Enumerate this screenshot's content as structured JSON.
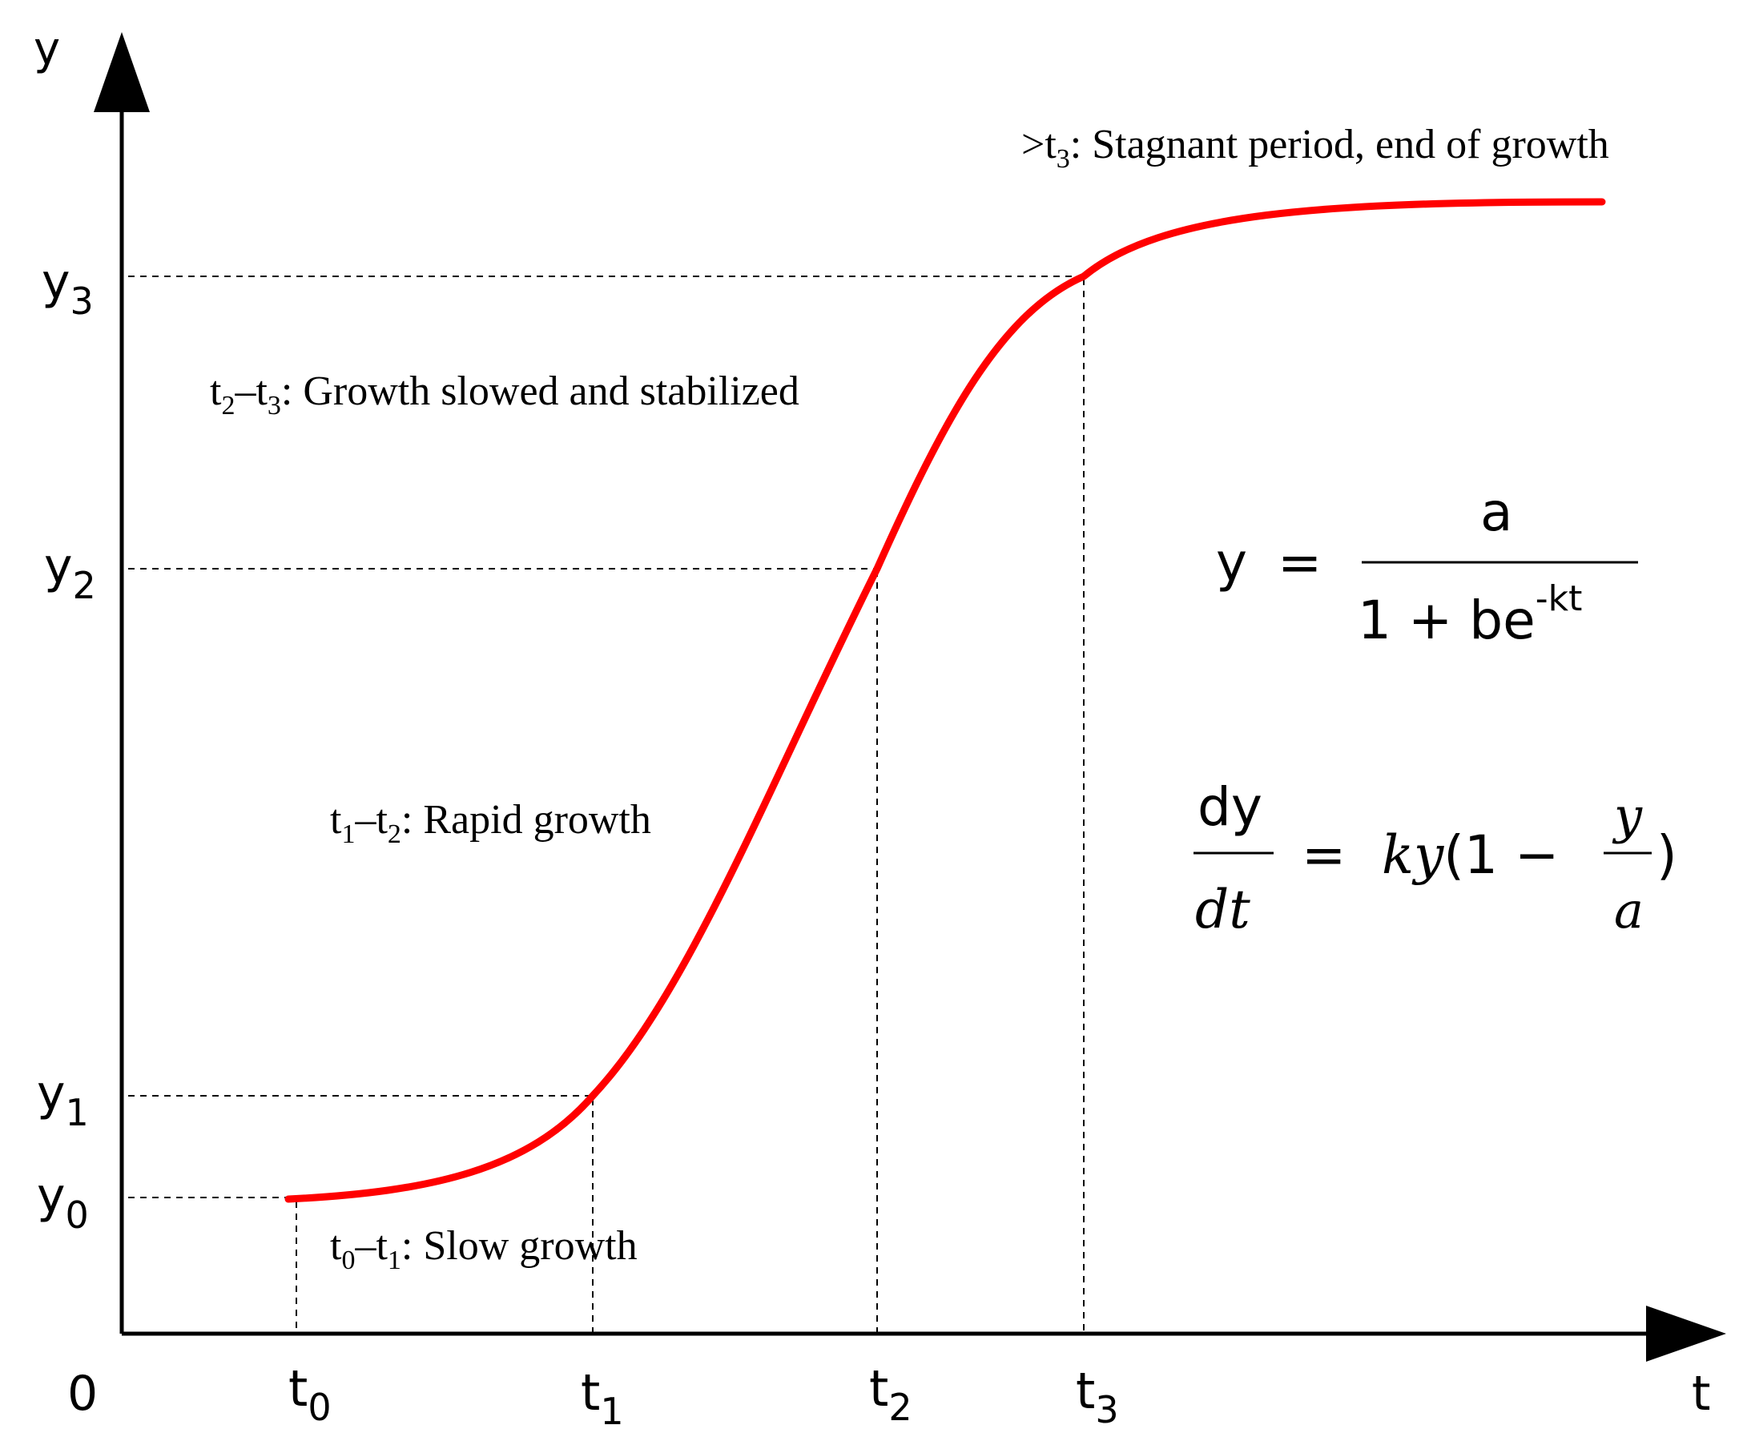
{
  "axes": {
    "y_label": "y",
    "x_label": "t",
    "origin_label": "0"
  },
  "y_ticks": [
    {
      "base": "y",
      "sub": "3"
    },
    {
      "base": "y",
      "sub": "2"
    },
    {
      "base": "y",
      "sub": "1"
    },
    {
      "base": "y",
      "sub": "0"
    }
  ],
  "x_ticks": [
    {
      "base": "t",
      "sub": "0"
    },
    {
      "base": "t",
      "sub": "1"
    },
    {
      "base": "t",
      "sub": "2"
    },
    {
      "base": "t",
      "sub": "3"
    }
  ],
  "phases": {
    "stagnant": {
      "prefix": ">t",
      "sub1": "3",
      "text": ": Stagnant period, end of growth"
    },
    "slowed": {
      "t1": "t",
      "s1": "2",
      "dash": "–t",
      "s2": "3",
      "text": ": Growth slowed and stabilized"
    },
    "rapid": {
      "t1": "t",
      "s1": "1",
      "dash": "–t",
      "s2": "2",
      "text": ": Rapid growth"
    },
    "slow": {
      "t1": "t",
      "s1": "0",
      "dash": "–t",
      "s2": "1",
      "text": ": Slow growth"
    }
  },
  "equations": {
    "logistic": {
      "lhs": "y",
      "eq": "=",
      "numerator": "a",
      "denominator": "1 + be",
      "exponent": "-kt"
    },
    "differential": {
      "num": "dy",
      "den": "dt",
      "eq": "=",
      "rhs_start": "ky",
      "rhs_mid": "(1 − ",
      "frac_num": "y",
      "frac_den": "a",
      "rhs_end": ")"
    }
  },
  "colors": {
    "curve": "#ff0000",
    "axis": "#000000",
    "guide": "#000000"
  }
}
